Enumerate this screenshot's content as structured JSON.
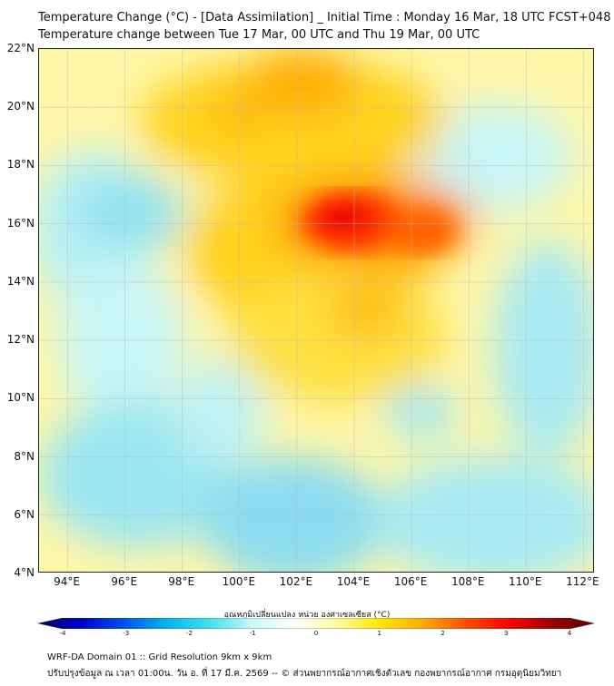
{
  "title": {
    "line1": "Temperature Change (°C) - [Data Assimilation] _ Initial Time : Monday 16 Mar, 18 UTC FCST+048",
    "line2": "Temperature change between Tue 17 Mar, 00 UTC and Thu 19 Mar, 00 UTC"
  },
  "map": {
    "lat_labels": [
      "22°N",
      "20°N",
      "18°N",
      "16°N",
      "14°N",
      "12°N",
      "10°N",
      "8°N",
      "6°N",
      "4°N"
    ],
    "lat_values": [
      22,
      20,
      18,
      16,
      14,
      12,
      10,
      8,
      6,
      4
    ],
    "lon_labels": [
      "94°E",
      "96°E",
      "98°E",
      "100°E",
      "102°E",
      "104°E",
      "106°E",
      "108°E",
      "110°E",
      "112°E"
    ],
    "lon_values": [
      94,
      96,
      98,
      100,
      102,
      104,
      106,
      108,
      110,
      112
    ],
    "lon_range": [
      93,
      112.4
    ],
    "lat_range": [
      4,
      22
    ]
  },
  "colorbar": {
    "label": "อุณหภูมิเปลี่ยนแปลง หน่วย องศาเซลเซียส (°C)",
    "ticks": [
      "-4",
      "-3",
      "-2",
      "-1",
      "0",
      "1",
      "2",
      "3",
      "4"
    ],
    "range": [
      -4,
      4
    ],
    "colors": [
      "#00005a",
      "#0000c8",
      "#0050f0",
      "#00b4f0",
      "#40e0f0",
      "#c8f8f8",
      "#ffffff",
      "#fffaa0",
      "#ffe600",
      "#ffaa00",
      "#ff5000",
      "#ff0000",
      "#a00000",
      "#5a0000"
    ]
  },
  "footer": {
    "line1": "WRF-DA Domain 01 :: Grid Resolution 9km x 9km",
    "line2": "ปรับปรุงข้อมูล ณ เวลา 01:00น. วัน อ. ที่ 17 มี.ค. 2569 -- © ส่วนพยากรณ์อากาศเชิงตัวเลข กองพยากรณ์อากาศ กรมอุตุนิยมวิทยา"
  }
}
